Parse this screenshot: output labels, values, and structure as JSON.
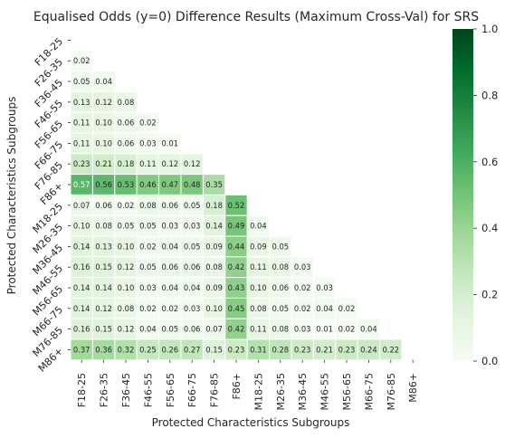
{
  "chart_data": {
    "type": "heatmap",
    "title": "Equalised Odds (y=0)  Difference Results (Maximum Cross-Val) for SRS",
    "xlabel": "Protected Characteristics Subgroups",
    "ylabel": "Protected Characteristics Subgroups",
    "categories": [
      "F18-25",
      "F26-35",
      "F36-45",
      "F46-55",
      "F56-65",
      "F66-75",
      "F76-85",
      "F86+",
      "M18-25",
      "M26-35",
      "M36-45",
      "M46-55",
      "M56-65",
      "M66-75",
      "M76-85",
      "M86+"
    ],
    "mask": "upper-triangle (including diagonal)",
    "rows": [
      [],
      [
        "0.02"
      ],
      [
        "0.05",
        "0.04"
      ],
      [
        "0.13",
        "0.12",
        "0.08"
      ],
      [
        "0.11",
        "0.10",
        "0.06",
        "0.02"
      ],
      [
        "0.11",
        "0.10",
        "0.06",
        "0.03",
        "0.01"
      ],
      [
        "0.23",
        "0.21",
        "0.18",
        "0.11",
        "0.12",
        "0.12"
      ],
      [
        "0.57",
        "0.56",
        "0.53",
        "0.46",
        "0.47",
        "0.48",
        "0.35"
      ],
      [
        "0.07",
        "0.06",
        "0.02",
        "0.08",
        "0.06",
        "0.05",
        "0.18",
        "0.52"
      ],
      [
        "0.10",
        "0.08",
        "0.05",
        "0.05",
        "0.03",
        "0.03",
        "0.14",
        "0.49",
        "0.04"
      ],
      [
        "0.14",
        "0.13",
        "0.10",
        "0.02",
        "0.04",
        "0.05",
        "0.09",
        "0.44",
        "0.09",
        "0.05"
      ],
      [
        "0.16",
        "0.15",
        "0.12",
        "0.05",
        "0.06",
        "0.06",
        "0.08",
        "0.42",
        "0.11",
        "0.08",
        "0.03"
      ],
      [
        "0.14",
        "0.14",
        "0.10",
        "0.03",
        "0.04",
        "0.04",
        "0.09",
        "0.43",
        "0.10",
        "0.06",
        "0.02",
        "0.03"
      ],
      [
        "0.14",
        "0.12",
        "0.08",
        "0.02",
        "0.02",
        "0.03",
        "0.10",
        "0.45",
        "0.08",
        "0.05",
        "0.02",
        "0.04",
        "0.02"
      ],
      [
        "0.16",
        "0.15",
        "0.12",
        "0.04",
        "0.05",
        "0.06",
        "0.07",
        "0.42",
        "0.11",
        "0.08",
        "0.03",
        "0.01",
        "0.02",
        "0.04"
      ],
      [
        "0.37",
        "0.36",
        "0.32",
        "0.25",
        "0.26",
        "0.27",
        "0.15",
        "0.23",
        "0.31",
        "0.28",
        "0.23",
        "0.21",
        "0.23",
        "0.24",
        "0.22"
      ]
    ],
    "colorbar": {
      "colormap": "Greens",
      "range": [
        0,
        1
      ],
      "ticks": [
        "0.0",
        "0.2",
        "0.4",
        "0.6",
        "0.8",
        "1.0"
      ]
    }
  }
}
